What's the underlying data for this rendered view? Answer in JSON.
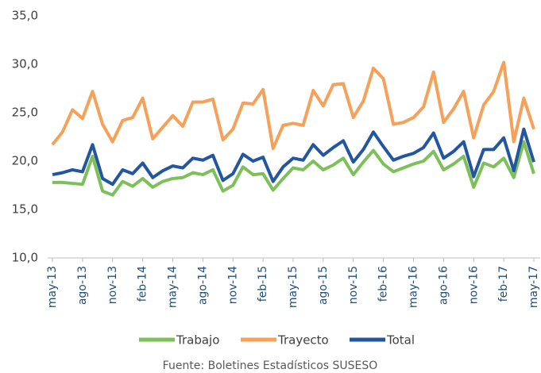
{
  "chart_data": {
    "type": "line",
    "categories": [
      "may-13",
      null,
      null,
      "ago-13",
      null,
      null,
      "nov-13",
      null,
      null,
      "feb-14",
      null,
      null,
      "may-14",
      null,
      null,
      "ago-14",
      null,
      null,
      "nov-14",
      null,
      null,
      "feb-15",
      null,
      null,
      "may-15",
      null,
      null,
      "ago-15",
      null,
      null,
      "nov-15",
      null,
      null,
      "feb-16",
      null,
      null,
      "may-16",
      null,
      null,
      "ago-16",
      null,
      null,
      "nov-16",
      null,
      null,
      "feb-17",
      null,
      null,
      "may-17"
    ],
    "series": [
      {
        "name": "Trabajo",
        "color": "#7dc05a",
        "values": [
          17.8,
          17.8,
          17.7,
          17.6,
          20.5,
          16.9,
          16.5,
          17.9,
          17.4,
          18.2,
          17.3,
          17.9,
          18.2,
          18.3,
          18.8,
          18.6,
          19.1,
          16.9,
          17.5,
          19.4,
          18.6,
          18.7,
          17.0,
          18.2,
          19.3,
          19.1,
          20.0,
          19.1,
          19.6,
          20.3,
          18.6,
          19.9,
          21.1,
          19.7,
          18.9,
          19.3,
          19.7,
          20.0,
          21.0,
          19.1,
          19.7,
          20.5,
          17.3,
          19.8,
          19.4,
          20.3,
          18.3,
          22.0,
          18.7
        ]
      },
      {
        "name": "Trayecto",
        "color": "#f5a15a",
        "values": [
          21.7,
          23.0,
          25.3,
          24.4,
          27.2,
          23.8,
          22.0,
          24.2,
          24.5,
          26.5,
          22.3,
          23.5,
          24.7,
          23.6,
          26.1,
          26.1,
          26.4,
          22.2,
          23.3,
          26.0,
          25.9,
          27.4,
          21.3,
          23.7,
          23.9,
          23.7,
          27.3,
          25.7,
          27.9,
          28.0,
          24.5,
          26.2,
          29.6,
          28.5,
          23.8,
          24.0,
          24.5,
          25.6,
          29.2,
          24.0,
          25.4,
          27.2,
          22.4,
          25.8,
          27.2,
          30.2,
          22.0,
          26.5,
          23.3
        ]
      },
      {
        "name": "Total",
        "color": "#2356a0",
        "values": [
          18.6,
          18.8,
          19.1,
          18.9,
          21.7,
          18.2,
          17.6,
          19.1,
          18.7,
          19.8,
          18.3,
          19.0,
          19.5,
          19.3,
          20.3,
          20.1,
          20.6,
          18.0,
          18.7,
          20.7,
          20.0,
          20.4,
          17.9,
          19.4,
          20.3,
          20.1,
          21.7,
          20.6,
          21.4,
          22.1,
          19.9,
          21.2,
          23.0,
          21.5,
          20.1,
          20.5,
          20.8,
          21.4,
          22.9,
          20.3,
          21.0,
          22.0,
          18.4,
          21.2,
          21.2,
          22.4,
          19.0,
          23.3,
          19.9
        ]
      }
    ],
    "ylim": [
      10,
      35
    ],
    "yticks": [
      {
        "value": 10,
        "label": "10,0"
      },
      {
        "value": 15,
        "label": "15,0"
      },
      {
        "value": 20,
        "label": "20,0"
      },
      {
        "value": 25,
        "label": "25,0"
      },
      {
        "value": 30,
        "label": "30,0"
      },
      {
        "value": 35,
        "label": "35,0"
      }
    ],
    "grid": false,
    "legend": "bottom",
    "source": "Fuente: Boletines Estadísticos SUSESO"
  }
}
